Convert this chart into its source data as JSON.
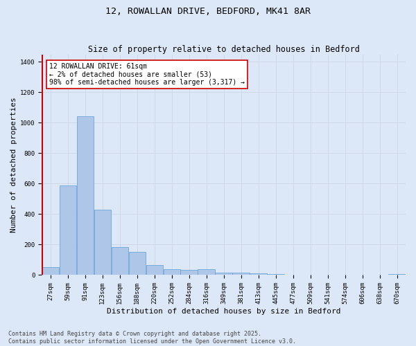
{
  "title_line1": "12, ROWALLAN DRIVE, BEDFORD, MK41 8AR",
  "title_line2": "Size of property relative to detached houses in Bedford",
  "xlabel": "Distribution of detached houses by size in Bedford",
  "ylabel": "Number of detached properties",
  "categories": [
    "27sqm",
    "59sqm",
    "91sqm",
    "123sqm",
    "156sqm",
    "188sqm",
    "220sqm",
    "252sqm",
    "284sqm",
    "316sqm",
    "349sqm",
    "381sqm",
    "413sqm",
    "445sqm",
    "477sqm",
    "509sqm",
    "541sqm",
    "574sqm",
    "606sqm",
    "638sqm",
    "670sqm"
  ],
  "values": [
    53,
    590,
    1045,
    430,
    185,
    150,
    65,
    38,
    35,
    38,
    18,
    15,
    13,
    7,
    3,
    2,
    0,
    0,
    0,
    0,
    5
  ],
  "bar_color": "#aec6e8",
  "bar_edge_color": "#5a9fd4",
  "marker_color": "#cc0000",
  "annotation_text": "12 ROWALLAN DRIVE: 61sqm\n← 2% of detached houses are smaller (53)\n98% of semi-detached houses are larger (3,317) →",
  "annotation_box_color": "#ffffff",
  "annotation_box_edge": "#cc0000",
  "ylim": [
    0,
    1450
  ],
  "yticks": [
    0,
    200,
    400,
    600,
    800,
    1000,
    1200,
    1400
  ],
  "grid_color": "#d0d8e8",
  "background_color": "#dce8f8",
  "plot_bg_color": "#dce8f8",
  "footer_line1": "Contains HM Land Registry data © Crown copyright and database right 2025.",
  "footer_line2": "Contains public sector information licensed under the Open Government Licence v3.0.",
  "title_fontsize": 9.5,
  "subtitle_fontsize": 8.5,
  "axis_label_fontsize": 8,
  "tick_fontsize": 6.5,
  "annotation_fontsize": 7,
  "footer_fontsize": 6
}
